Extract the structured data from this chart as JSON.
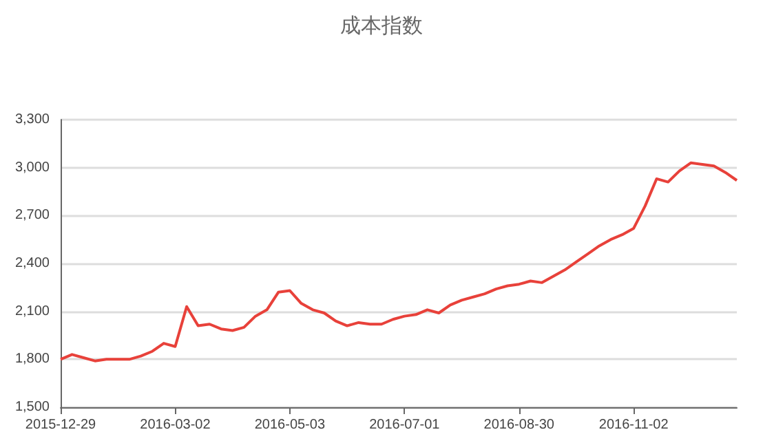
{
  "chart_data": {
    "type": "line",
    "title": "成本指数",
    "categories": [
      "2015-12-29",
      null,
      null,
      null,
      null,
      null,
      null,
      null,
      null,
      null,
      "2016-03-02",
      null,
      null,
      null,
      null,
      null,
      null,
      null,
      null,
      null,
      "2016-05-03",
      null,
      null,
      null,
      null,
      null,
      null,
      null,
      null,
      null,
      "2016-07-01",
      null,
      null,
      null,
      null,
      null,
      null,
      null,
      null,
      null,
      "2016-08-30",
      null,
      null,
      null,
      null,
      null,
      null,
      null,
      null,
      null,
      "2016-11-02",
      null,
      null,
      null,
      null,
      null,
      null,
      null,
      null,
      null
    ],
    "series": [
      {
        "color": "#e8413a",
        "values": [
          1800,
          1830,
          1810,
          1790,
          1800,
          1800,
          1800,
          1820,
          1850,
          1900,
          1880,
          2130,
          2010,
          2020,
          1990,
          1980,
          2000,
          2070,
          2110,
          2220,
          2230,
          2150,
          2110,
          2090,
          2040,
          2010,
          2030,
          2020,
          2020,
          2050,
          2070,
          2080,
          2110,
          2090,
          2140,
          2170,
          2190,
          2210,
          2240,
          2260,
          2270,
          2290,
          2280,
          2320,
          2360,
          2410,
          2460,
          2510,
          2550,
          2580,
          2620,
          2760,
          2930,
          2910,
          2980,
          3030,
          3020,
          3010,
          2970,
          2920
        ]
      }
    ],
    "ylim": [
      1500,
      3300
    ],
    "yticks": [
      {
        "value": 1500,
        "label": "1,500"
      },
      {
        "value": 1800,
        "label": "1,800"
      },
      {
        "value": 2100,
        "label": "2,100"
      },
      {
        "value": 2400,
        "label": "2,400"
      },
      {
        "value": 2700,
        "label": "2,700"
      },
      {
        "value": 3000,
        "label": "3,000"
      },
      {
        "value": 3300,
        "label": "3,300"
      }
    ],
    "grid": "y",
    "marker": "none",
    "line_style": "solid"
  }
}
